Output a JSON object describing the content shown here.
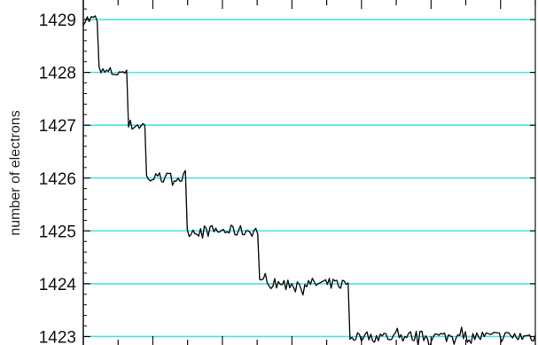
{
  "chart_data": {
    "type": "line",
    "title": "",
    "xlabel": "",
    "ylabel": "number of electrons",
    "ylim": [
      1422.84,
      1429.37
    ],
    "y_ticks": [
      "1423",
      "1424",
      "1425",
      "1426",
      "1427",
      "1428",
      "1429"
    ],
    "y_tick_values": [
      1423,
      1424,
      1425,
      1426,
      1427,
      1428,
      1429
    ],
    "gridlines": {
      "shown": true,
      "orientation": "horizontal",
      "at": [
        1423,
        1424,
        1425,
        1426,
        1427,
        1428,
        1429
      ],
      "color": "#4fe0e6"
    },
    "x_ticks_labeled": false,
    "x_minor_ticks": 13,
    "levels": [
      {
        "value": 1429,
        "x_start": 0.0,
        "x_end": 0.035
      },
      {
        "value": 1428,
        "x_start": 0.035,
        "x_end": 0.1
      },
      {
        "value": 1427,
        "x_start": 0.1,
        "x_end": 0.14
      },
      {
        "value": 1426,
        "x_start": 0.14,
        "x_end": 0.23
      },
      {
        "value": 1425,
        "x_start": 0.23,
        "x_end": 0.39
      },
      {
        "value": 1424,
        "x_start": 0.39,
        "x_end": 0.59
      },
      {
        "value": 1423,
        "x_start": 0.59,
        "x_end": 1.0
      }
    ],
    "x_domain": [
      0,
      1
    ],
    "series": [
      {
        "color": "#111111"
      }
    ]
  }
}
